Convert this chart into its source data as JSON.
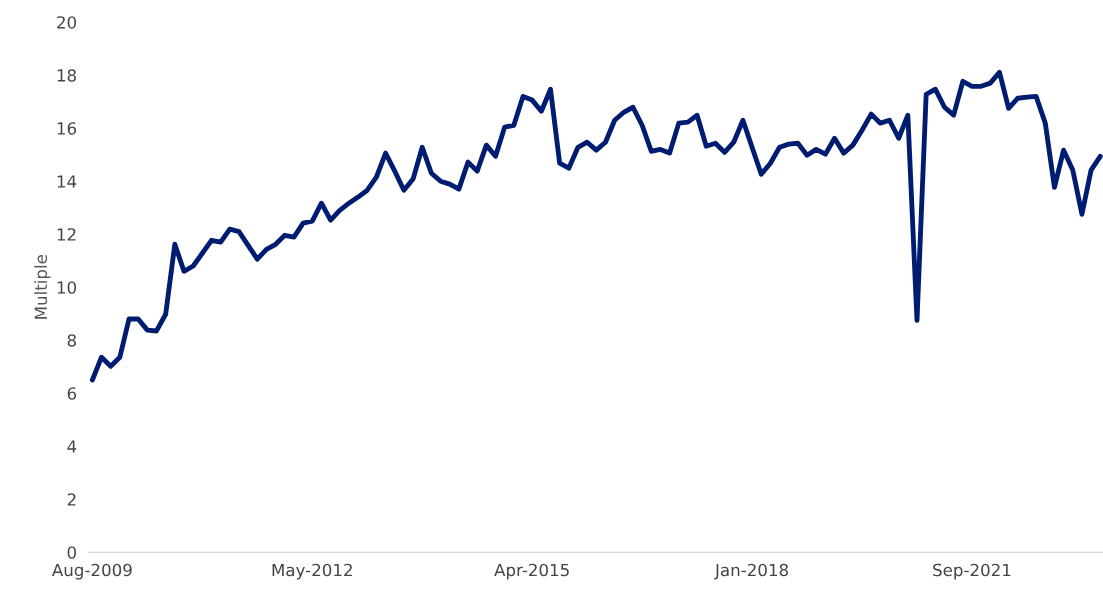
{
  "chart_data": {
    "type": "line",
    "ylabel": "Multiple",
    "categories": [
      "Aug-2009",
      null,
      null,
      null,
      null,
      null,
      null,
      null,
      null,
      null,
      null,
      null,
      null,
      null,
      null,
      null,
      null,
      null,
      null,
      null,
      null,
      null,
      null,
      null,
      "May-2012",
      null,
      null,
      null,
      null,
      null,
      null,
      null,
      null,
      null,
      null,
      null,
      null,
      null,
      null,
      null,
      null,
      null,
      null,
      null,
      null,
      null,
      null,
      null,
      "Apr-2015",
      null,
      null,
      null,
      null,
      null,
      null,
      null,
      null,
      null,
      null,
      null,
      null,
      null,
      null,
      null,
      null,
      null,
      null,
      null,
      null,
      null,
      null,
      null,
      "Jan-2018",
      null,
      null,
      null,
      null,
      null,
      null,
      null,
      null,
      null,
      null,
      null,
      null,
      null,
      null,
      null,
      null,
      null,
      null,
      null,
      null,
      null,
      null,
      null,
      "Sep-2021",
      null,
      null,
      null,
      null,
      null,
      null,
      null,
      null,
      null,
      null,
      null,
      null,
      null,
      null
    ],
    "series": [
      {
        "color": "#001c71",
        "values": [
          6.5,
          7.36,
          7.02,
          7.36,
          8.8,
          8.8,
          8.38,
          8.35,
          8.98,
          11.62,
          10.6,
          10.8,
          11.28,
          11.77,
          11.7,
          12.19,
          12.1,
          11.58,
          11.06,
          11.43,
          11.62,
          11.96,
          11.89,
          12.42,
          12.49,
          13.17,
          12.53,
          12.9,
          13.17,
          13.4,
          13.66,
          14.15,
          15.06,
          14.38,
          13.66,
          14.08,
          15.28,
          14.3,
          14.0,
          13.89,
          13.7,
          14.72,
          14.38,
          15.36,
          14.94,
          16.04,
          16.11,
          17.2,
          17.06,
          16.64,
          17.47,
          14.68,
          14.49,
          15.28,
          15.47,
          15.17,
          15.47,
          16.3,
          16.6,
          16.79,
          16.11,
          15.13,
          15.2,
          15.06,
          16.19,
          16.23,
          16.49,
          15.32,
          15.43,
          15.09,
          15.47,
          16.3,
          15.28,
          14.26,
          14.68,
          15.28,
          15.4,
          15.43,
          14.98,
          15.2,
          15.02,
          15.62,
          15.06,
          15.36,
          15.92,
          16.53,
          16.19,
          16.3,
          15.62,
          16.49,
          8.75,
          17.28,
          17.47,
          16.79,
          16.49,
          17.77,
          17.58,
          17.58,
          17.7,
          18.11,
          16.75,
          17.13,
          17.17,
          17.2,
          16.19,
          13.77,
          15.17,
          14.42,
          12.75,
          14.42,
          14.94
        ]
      }
    ],
    "ylim": [
      0,
      20
    ],
    "yticks": [
      0,
      2,
      4,
      6,
      8,
      10,
      12,
      14,
      16,
      18,
      20
    ],
    "grid": false,
    "legend": false,
    "marker": "none",
    "line_style": "solid"
  }
}
